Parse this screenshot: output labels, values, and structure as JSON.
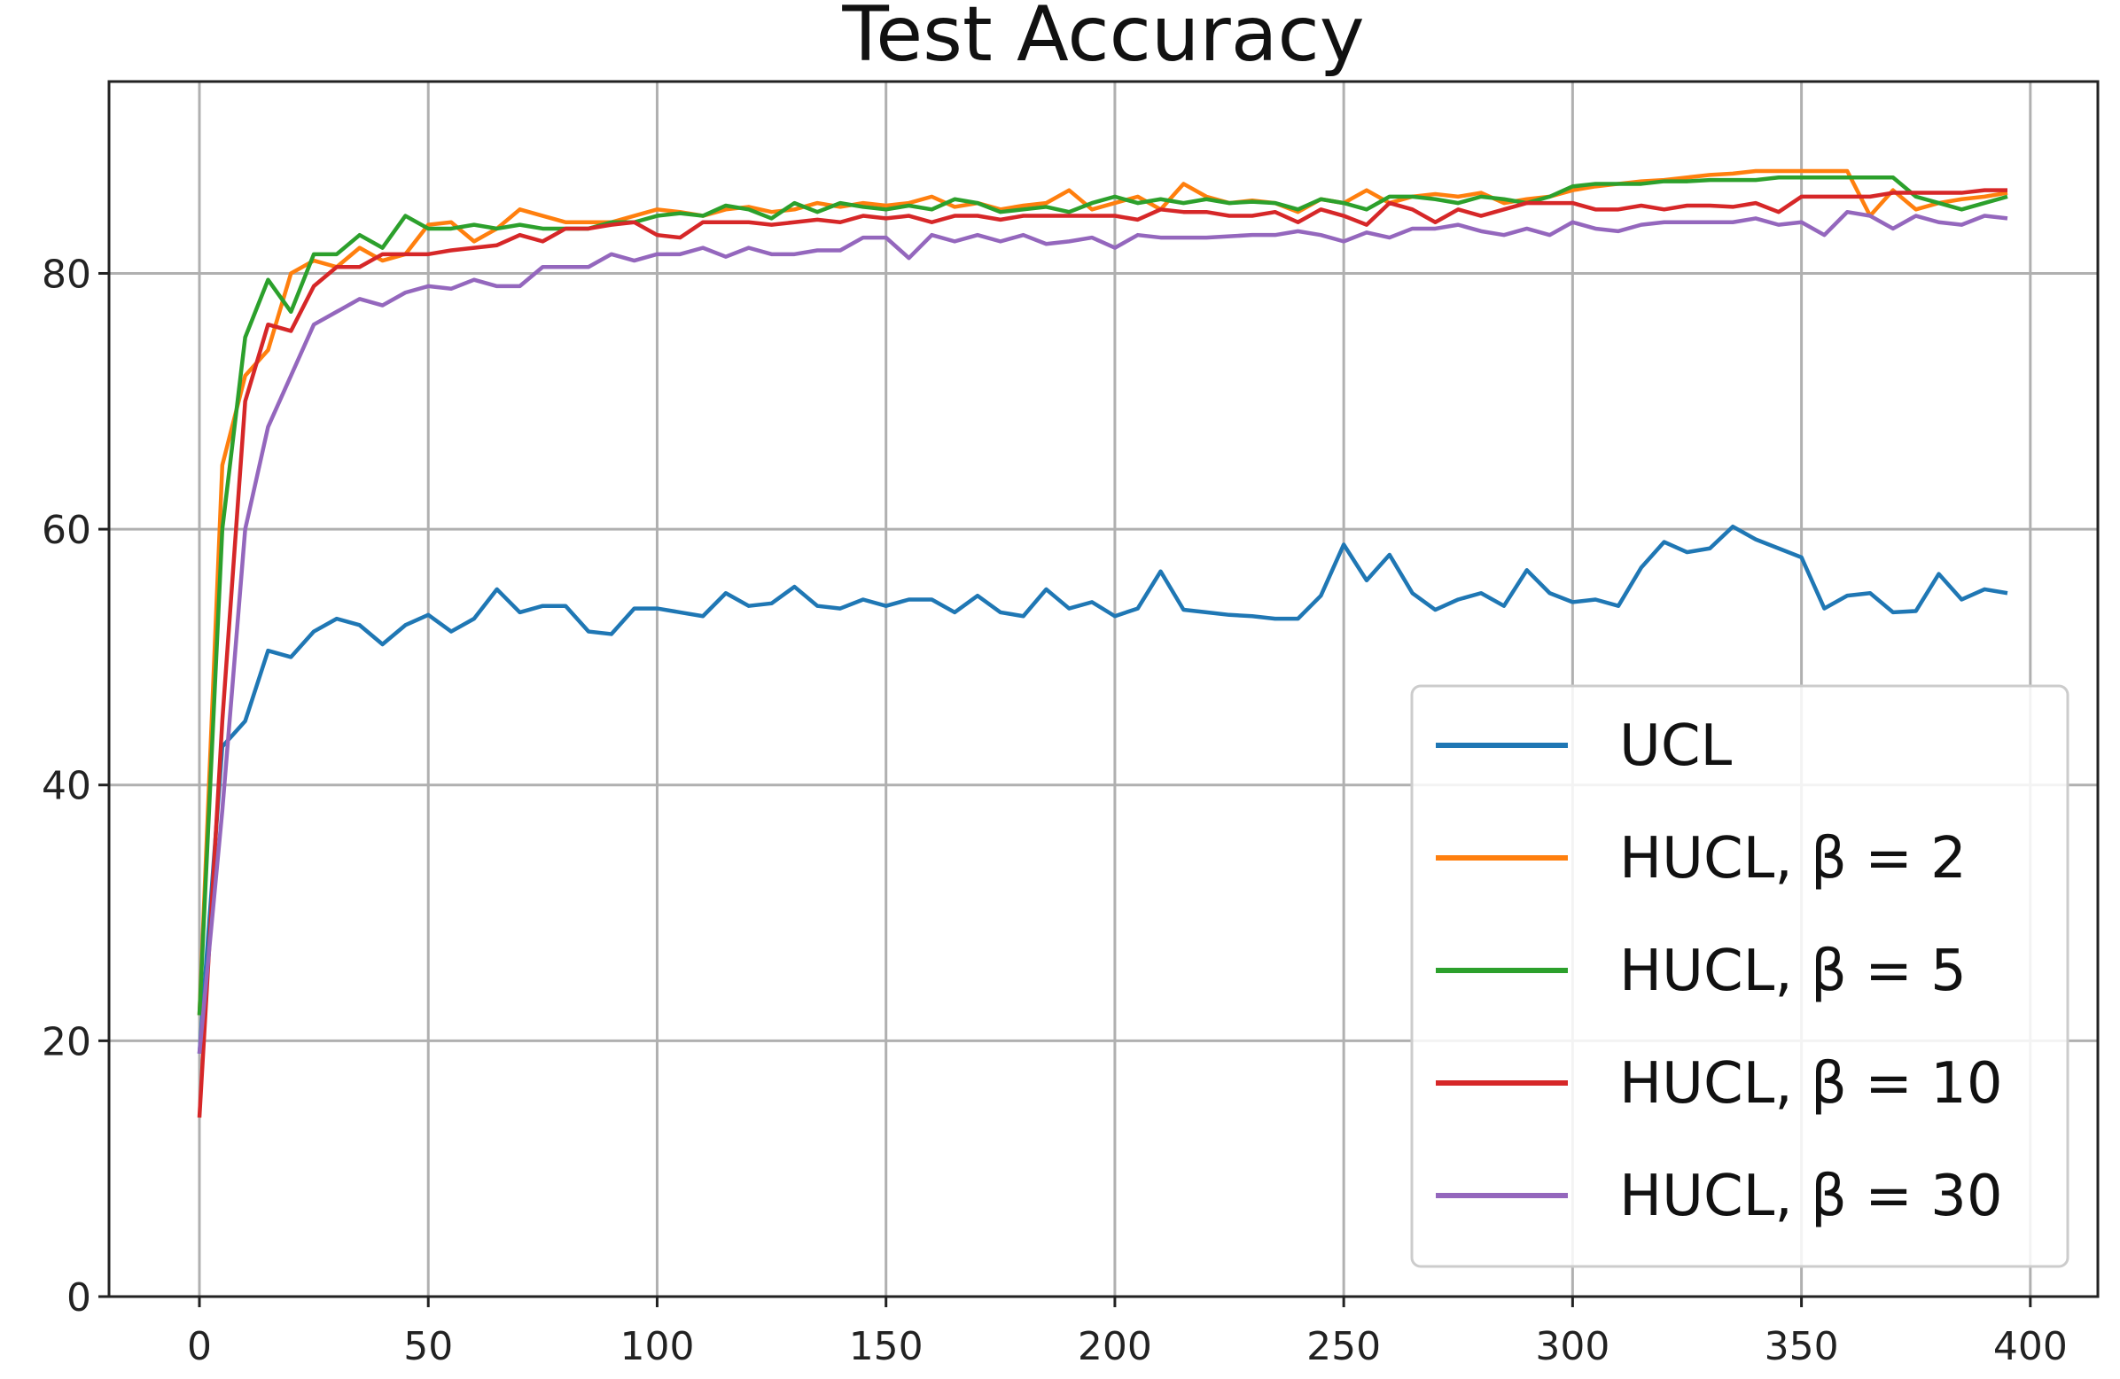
{
  "chart_data": {
    "type": "line",
    "title": "Test Accuracy",
    "x": [
      0,
      5,
      10,
      15,
      20,
      25,
      30,
      35,
      40,
      45,
      50,
      55,
      60,
      65,
      70,
      75,
      80,
      85,
      90,
      95,
      100,
      105,
      110,
      115,
      120,
      125,
      130,
      135,
      140,
      145,
      150,
      155,
      160,
      165,
      170,
      175,
      180,
      185,
      190,
      195,
      200,
      205,
      210,
      215,
      220,
      225,
      230,
      235,
      240,
      245,
      250,
      255,
      260,
      265,
      270,
      275,
      280,
      285,
      290,
      295,
      300,
      305,
      310,
      315,
      320,
      325,
      330,
      335,
      340,
      345,
      350,
      355,
      360,
      365,
      370,
      375,
      380,
      385,
      390,
      395
    ],
    "series": [
      {
        "name": "UCL",
        "color": "#1f77b4",
        "values": [
          19,
          43,
          45,
          50.5,
          50,
          52,
          53,
          52.5,
          51,
          52.5,
          53.3,
          52,
          53,
          55.3,
          53.5,
          54,
          54,
          52,
          51.8,
          53.8,
          53.8,
          53.5,
          53.2,
          55,
          54,
          54.2,
          55.5,
          54,
          53.8,
          54.5,
          54,
          54.5,
          54.5,
          53.5,
          54.8,
          53.5,
          53.2,
          55.3,
          53.8,
          54.3,
          53.2,
          53.8,
          56.7,
          53.7,
          53.5,
          53.3,
          53.2,
          53,
          53,
          54.8,
          58.8,
          56,
          58,
          55,
          53.7,
          54.5,
          55,
          54,
          56.8,
          55,
          54.3,
          54.5,
          54,
          57,
          59,
          58.2,
          58.5,
          60.2,
          59.2,
          58.5,
          57.8,
          53.8,
          54.8,
          55,
          53.5,
          53.6,
          56.5,
          54.5,
          55.3,
          55
        ]
      },
      {
        "name": "HUCL, β = 2",
        "color": "#ff7f0e",
        "values": [
          22,
          65,
          72,
          74,
          80,
          81,
          80.5,
          82,
          81,
          81.5,
          83.8,
          84,
          82.5,
          83.5,
          85,
          84.5,
          84,
          84,
          84,
          84.5,
          85,
          84.8,
          84.5,
          85,
          85.2,
          84.8,
          85,
          85.5,
          85.2,
          85.5,
          85.3,
          85.5,
          86,
          85.2,
          85.5,
          85,
          85.3,
          85.5,
          86.5,
          85,
          85.5,
          86,
          85,
          87,
          86,
          85.5,
          85.7,
          85.5,
          84.8,
          85.8,
          85.5,
          86.5,
          85.5,
          86,
          86.2,
          86,
          86.3,
          85.5,
          85.8,
          86,
          86.5,
          86.8,
          87,
          87.2,
          87.3,
          87.5,
          87.7,
          87.8,
          88,
          88,
          88,
          88,
          88,
          84.5,
          86.5,
          85,
          85.5,
          85.8,
          86,
          86.3
        ]
      },
      {
        "name": "HUCL, β = 5",
        "color": "#2ca02c",
        "values": [
          22,
          60,
          75,
          79.5,
          77,
          81.5,
          81.5,
          83,
          82,
          84.5,
          83.5,
          83.5,
          83.8,
          83.5,
          83.8,
          83.5,
          83.5,
          83.5,
          84,
          84,
          84.5,
          84.7,
          84.5,
          85.3,
          85,
          84.3,
          85.5,
          84.8,
          85.5,
          85.2,
          85,
          85.3,
          85,
          85.8,
          85.5,
          84.8,
          85,
          85.2,
          84.8,
          85.5,
          86,
          85.5,
          85.8,
          85.5,
          85.8,
          85.5,
          85.6,
          85.5,
          85,
          85.8,
          85.5,
          85,
          86,
          86,
          85.8,
          85.5,
          86,
          85.8,
          85.5,
          86,
          86.8,
          87,
          87,
          87,
          87.2,
          87.2,
          87.3,
          87.3,
          87.3,
          87.5,
          87.5,
          87.5,
          87.5,
          87.5,
          87.5,
          86,
          85.5,
          85,
          85.5,
          86
        ]
      },
      {
        "name": "HUCL, β = 10",
        "color": "#d62728",
        "values": [
          14,
          45,
          70,
          76,
          75.5,
          79,
          80.5,
          80.5,
          81.5,
          81.5,
          81.5,
          81.8,
          82,
          82.2,
          83,
          82.5,
          83.5,
          83.5,
          83.8,
          84,
          83,
          82.8,
          84,
          84,
          84,
          83.8,
          84,
          84.2,
          84,
          84.5,
          84.3,
          84.5,
          84,
          84.5,
          84.5,
          84.2,
          84.5,
          84.5,
          84.5,
          84.5,
          84.5,
          84.2,
          85,
          84.8,
          84.8,
          84.5,
          84.5,
          84.8,
          84,
          85,
          84.5,
          83.8,
          85.5,
          85,
          84,
          85,
          84.5,
          85,
          85.5,
          85.5,
          85.5,
          85,
          85,
          85.3,
          85,
          85.3,
          85.3,
          85.2,
          85.5,
          84.8,
          86,
          86,
          86,
          86,
          86.3,
          86.3,
          86.3,
          86.3,
          86.5,
          86.5
        ]
      },
      {
        "name": "HUCL, β = 30",
        "color": "#9467bd",
        "values": [
          19,
          38,
          60,
          68,
          72,
          76,
          77,
          78,
          77.5,
          78.5,
          79,
          78.8,
          79.5,
          79,
          79,
          80.5,
          80.5,
          80.5,
          81.5,
          81,
          81.5,
          81.5,
          82,
          81.3,
          82,
          81.5,
          81.5,
          81.8,
          81.8,
          82.8,
          82.8,
          81.2,
          83,
          82.5,
          83,
          82.5,
          83,
          82.3,
          82.5,
          82.8,
          82,
          83,
          82.8,
          82.8,
          82.8,
          82.9,
          83,
          83,
          83.3,
          83,
          82.5,
          83.2,
          82.8,
          83.5,
          83.5,
          83.8,
          83.3,
          83,
          83.5,
          83,
          84,
          83.5,
          83.3,
          83.8,
          84,
          84,
          84,
          84,
          84.3,
          83.8,
          84,
          83,
          84.8,
          84.5,
          83.5,
          84.5,
          84,
          83.8,
          84.5,
          84.3
        ]
      }
    ],
    "xlim": [
      -19.75,
      414.75
    ],
    "ylim": [
      0,
      95
    ],
    "xticks": [
      0,
      50,
      100,
      150,
      200,
      250,
      300,
      350,
      400
    ],
    "yticks": [
      0,
      20,
      40,
      60,
      80
    ],
    "grid": true,
    "legend": "lower right"
  }
}
